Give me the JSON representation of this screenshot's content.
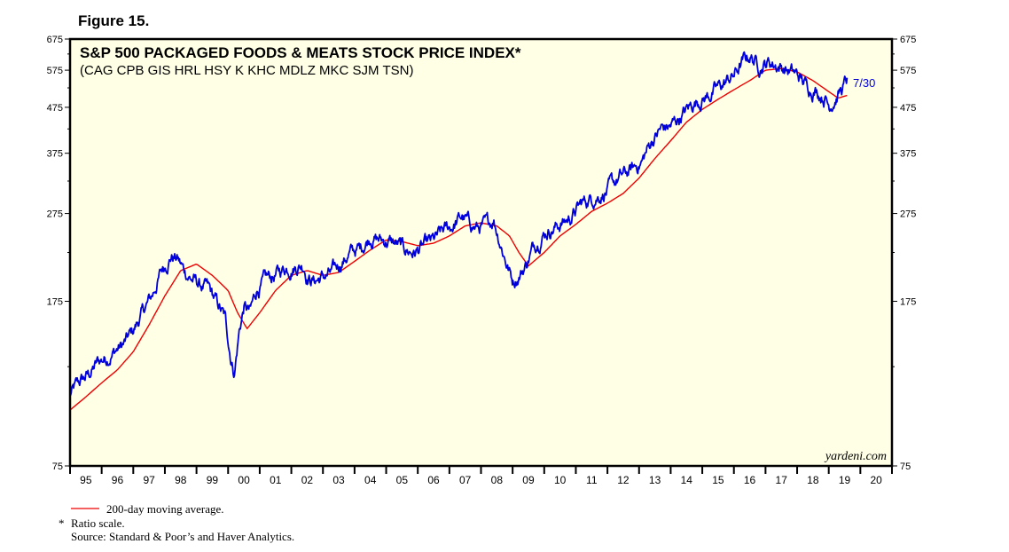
{
  "figure_label": "Figure 15.",
  "brand": "yardeni.com",
  "colors": {
    "background": "#FFFFE6",
    "price_line": "#0000DD",
    "ma_line": "#EE0000",
    "frame": "#000000"
  },
  "footnotes": {
    "ma_legend": "200-day moving average.",
    "ratio_marker": "*",
    "ratio": "Ratio scale.",
    "source": "Source: Standard & Poor’s and Haver Analytics."
  },
  "chart_data": {
    "type": "line",
    "title": "S&P 500 PACKAGED FOODS & MEATS STOCK PRICE INDEX*",
    "subtitle": "(CAG CPB GIS HRL HSY K KHC MDLZ MKC SJM TSN)",
    "scale": "log",
    "ylim": [
      75,
      675
    ],
    "xlim": [
      1995.0,
      2021.0
    ],
    "y_ticks": [
      75,
      175,
      275,
      375,
      475,
      575,
      675
    ],
    "y_tick_labels": [
      "75",
      "175",
      "275",
      "375",
      "475",
      "575",
      "675"
    ],
    "x_tick_labels": [
      "95",
      "96",
      "97",
      "98",
      "99",
      "00",
      "01",
      "02",
      "03",
      "04",
      "05",
      "06",
      "07",
      "08",
      "09",
      "10",
      "11",
      "12",
      "13",
      "14",
      "15",
      "16",
      "17",
      "18",
      "19",
      "20"
    ],
    "end_label": "7/30",
    "series": [
      {
        "name": "S&P 500 Packaged Foods & Meats Stock Price Index",
        "x": [
          1995.0,
          1995.3,
          1995.6,
          1995.9,
          1996.2,
          1996.5,
          1996.7,
          1997.0,
          1997.3,
          1997.6,
          1997.9,
          1998.2,
          1998.4,
          1998.6,
          1998.8,
          1999.1,
          1999.4,
          1999.7,
          1999.9,
          2000.1,
          2000.2,
          2000.35,
          2000.5,
          2000.7,
          2000.9,
          2001.2,
          2001.5,
          2001.8,
          2002.1,
          2002.4,
          2002.5,
          2002.7,
          2003.0,
          2003.3,
          2003.6,
          2003.9,
          2004.2,
          2004.5,
          2004.8,
          2005.1,
          2005.3,
          2005.6,
          2005.9,
          2006.2,
          2006.5,
          2006.8,
          2007.1,
          2007.4,
          2007.6,
          2007.9,
          2008.2,
          2008.4,
          2008.6,
          2008.8,
          2009.0,
          2009.2,
          2009.4,
          2009.7,
          2010.0,
          2010.4,
          2010.8,
          2011.2,
          2011.6,
          2012.0,
          2012.4,
          2012.8,
          2013.1,
          2013.4,
          2013.7,
          2014.0,
          2014.4,
          2014.8,
          2015.2,
          2015.6,
          2016.0,
          2016.3,
          2016.5,
          2016.8,
          2017.1,
          2017.4,
          2017.7,
          2018.0,
          2018.3,
          2018.6,
          2018.9,
          2019.0,
          2019.2,
          2019.4,
          2019.58
        ],
        "values": [
          108,
          115,
          120,
          128,
          132,
          137,
          140,
          150,
          165,
          180,
          205,
          222,
          218,
          205,
          198,
          190,
          185,
          170,
          160,
          130,
          122,
          150,
          170,
          165,
          185,
          195,
          200,
          208,
          210,
          212,
          200,
          195,
          198,
          202,
          215,
          225,
          230,
          245,
          240,
          238,
          235,
          228,
          225,
          232,
          238,
          250,
          258,
          270,
          262,
          255,
          258,
          268,
          240,
          215,
          195,
          200,
          210,
          235,
          250,
          258,
          268,
          290,
          300,
          310,
          330,
          345,
          360,
          400,
          425,
          430,
          460,
          490,
          505,
          530,
          560,
          600,
          620,
          590,
          600,
          590,
          575,
          560,
          530,
          520,
          500,
          480,
          500,
          520,
          545
        ]
      },
      {
        "name": "200-day moving average",
        "x": [
          1995.0,
          1995.5,
          1996.0,
          1996.5,
          1997.0,
          1997.5,
          1998.0,
          1998.5,
          1999.0,
          1999.5,
          2000.0,
          2000.3,
          2000.6,
          2001.0,
          2001.5,
          2002.0,
          2002.5,
          2003.0,
          2003.5,
          2004.0,
          2004.5,
          2005.0,
          2005.5,
          2006.0,
          2006.5,
          2007.0,
          2007.5,
          2008.0,
          2008.5,
          2008.9,
          2009.2,
          2009.5,
          2010.0,
          2010.5,
          2011.0,
          2011.5,
          2012.0,
          2012.5,
          2013.0,
          2013.5,
          2014.0,
          2014.5,
          2015.0,
          2015.5,
          2016.0,
          2016.5,
          2017.0,
          2017.5,
          2018.0,
          2018.5,
          2019.0,
          2019.3,
          2019.58
        ],
        "values": [
          100,
          107,
          115,
          123,
          135,
          155,
          180,
          205,
          212,
          200,
          185,
          165,
          152,
          165,
          185,
          200,
          205,
          200,
          203,
          215,
          228,
          240,
          238,
          233,
          236,
          245,
          258,
          262,
          258,
          245,
          225,
          210,
          225,
          245,
          260,
          278,
          290,
          305,
          330,
          365,
          400,
          440,
          470,
          495,
          520,
          545,
          575,
          580,
          570,
          545,
          515,
          498,
          505
        ]
      }
    ]
  }
}
